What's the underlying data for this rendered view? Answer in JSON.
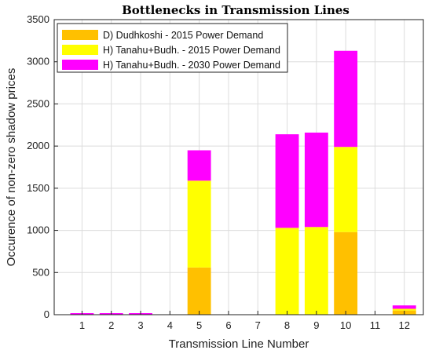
{
  "chart_data": {
    "type": "bar",
    "stacked": true,
    "title": "Bottlenecks in Transmission Lines",
    "xlabel": "Transmission Line Number",
    "ylabel": "Occurence of non-zero shadow prices",
    "categories": [
      "1",
      "2",
      "3",
      "4",
      "5",
      "6",
      "7",
      "8",
      "9",
      "10",
      "11",
      "12"
    ],
    "ylim": [
      0,
      3500
    ],
    "yticks": [
      "0",
      "500",
      "1000",
      "1500",
      "2000",
      "2500",
      "3000",
      "3500"
    ],
    "grid": true,
    "legend_position": "top-left",
    "series": [
      {
        "name": "D) Dudhkoshi - 2015 Power Demand",
        "color": "#FFC000",
        "values": [
          0,
          0,
          0,
          0,
          560,
          0,
          0,
          0,
          0,
          980,
          0,
          50
        ]
      },
      {
        "name": "H) Tanahu+Budh. - 2015 Power Demand",
        "color": "#FFFF00",
        "values": [
          0,
          0,
          0,
          0,
          1030,
          0,
          0,
          1030,
          1040,
          1010,
          0,
          20
        ]
      },
      {
        "name": "H) Tanahu+Budh. - 2030 Power Demand",
        "color": "#FF00FF",
        "values": [
          5,
          10,
          15,
          0,
          360,
          0,
          0,
          1110,
          1120,
          1140,
          0,
          40
        ]
      }
    ]
  }
}
